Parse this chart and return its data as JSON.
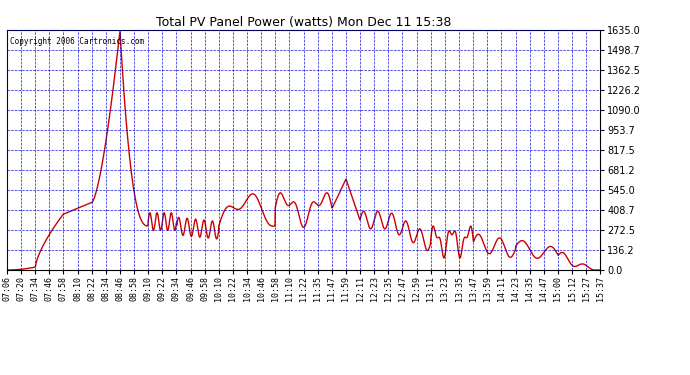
{
  "title": "Total PV Panel Power (watts) Mon Dec 11 15:38",
  "copyright_text": "Copyright 2006 Cartronics.com",
  "background_color": "#ffffff",
  "plot_bg_color": "#ffffff",
  "line_color": "#cc0000",
  "grid_color": "#0000cc",
  "ytick_values": [
    0.0,
    136.2,
    272.5,
    408.7,
    545.0,
    681.2,
    817.5,
    953.7,
    1090.0,
    1226.2,
    1362.5,
    1498.7,
    1635.0
  ],
  "xtick_labels": [
    "07:06",
    "07:20",
    "07:34",
    "07:46",
    "07:58",
    "08:10",
    "08:22",
    "08:34",
    "08:46",
    "08:58",
    "09:10",
    "09:22",
    "09:34",
    "09:46",
    "09:58",
    "10:10",
    "10:22",
    "10:34",
    "10:46",
    "10:58",
    "11:10",
    "11:22",
    "11:35",
    "11:47",
    "11:59",
    "12:11",
    "12:23",
    "12:35",
    "12:47",
    "12:59",
    "13:11",
    "13:23",
    "13:35",
    "13:47",
    "13:59",
    "14:11",
    "14:23",
    "14:35",
    "14:47",
    "15:00",
    "15:12",
    "15:27",
    "15:37"
  ],
  "ylim": [
    0.0,
    1635.0
  ],
  "line_width": 1.0
}
